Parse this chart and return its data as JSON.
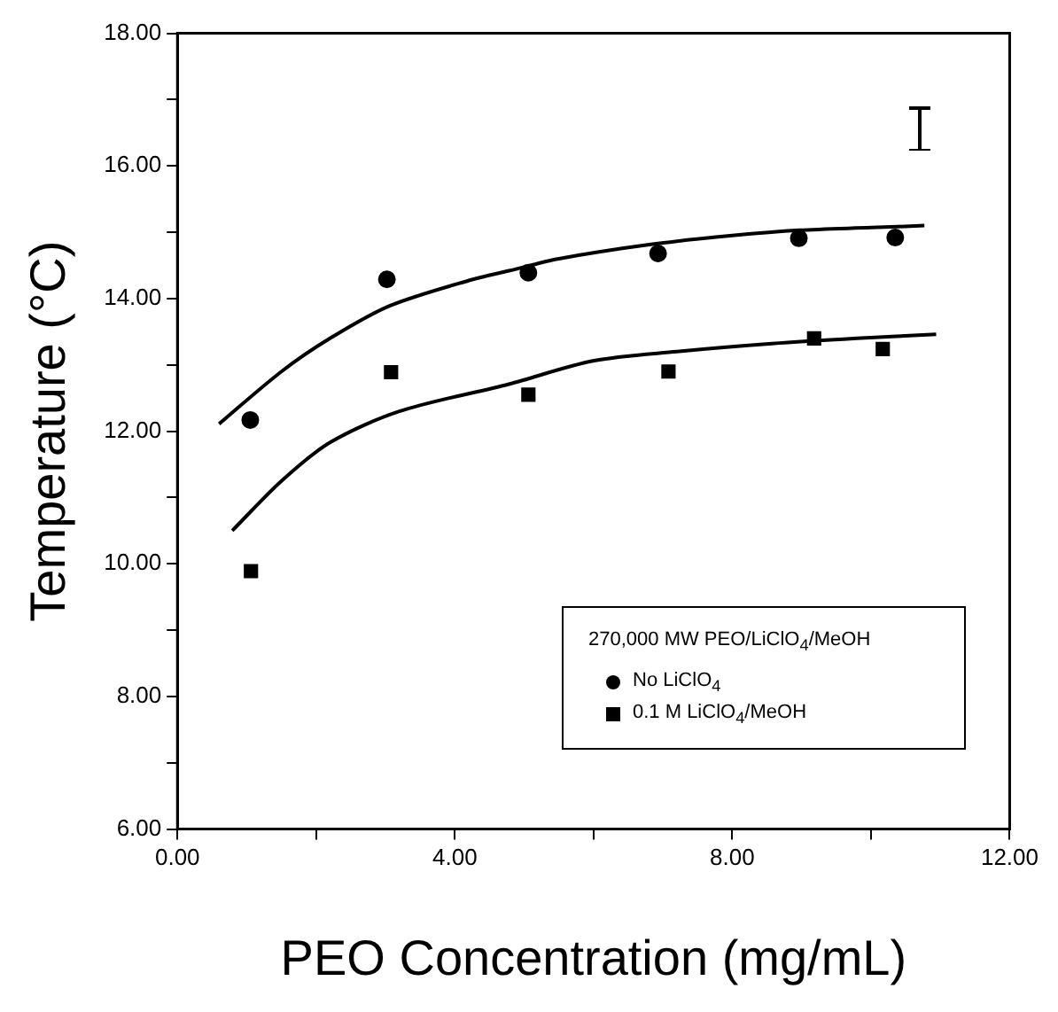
{
  "chart_data": {
    "type": "scatter",
    "xlabel": "PEO Concentration (mg/mL)",
    "ylabel": "Temperature (°C)",
    "legend_title": "270,000 MW PEO/LiClO$_{4}$/MeOH",
    "xlim": [
      0,
      12
    ],
    "xticks": [
      {
        "value": 0,
        "label": "0.00"
      },
      {
        "value": 2,
        "label": null
      },
      {
        "value": 4,
        "label": "4.00"
      },
      {
        "value": 6,
        "label": null
      },
      {
        "value": 8,
        "label": "8.00"
      },
      {
        "value": 10,
        "label": null
      },
      {
        "value": 12,
        "label": "12.00"
      }
    ],
    "ylim": [
      6,
      18
    ],
    "yticks": [
      {
        "value": 6,
        "label": "6.00"
      },
      {
        "value": 7,
        "label": null
      },
      {
        "value": 8,
        "label": "8.00"
      },
      {
        "value": 9,
        "label": null
      },
      {
        "value": 10,
        "label": "10.00"
      },
      {
        "value": 11,
        "label": null
      },
      {
        "value": 12,
        "label": "12.00"
      },
      {
        "value": 13,
        "label": null
      },
      {
        "value": 14,
        "label": "14.00"
      },
      {
        "value": 15,
        "label": null
      },
      {
        "value": 16,
        "label": "16.00"
      },
      {
        "value": 17,
        "label": null
      },
      {
        "value": 18,
        "label": "18.00"
      }
    ],
    "grid": false,
    "legend": "bottom right",
    "series": [
      {
        "name": "No LiClO$_{4}$",
        "type": "scatter",
        "marker": "circle",
        "color": "#000000",
        "x": [
          1.05,
          3.02,
          5.06,
          6.93,
          8.96,
          10.35
        ],
        "values": [
          12.17,
          14.29,
          14.39,
          14.68,
          14.91,
          14.92
        ]
      },
      {
        "name": "0.1 M LiClO$_{4}$/MeOH",
        "type": "scatter",
        "marker": "square",
        "color": "#000000",
        "x": [
          1.06,
          3.08,
          5.06,
          7.08,
          9.18,
          10.17
        ],
        "values": [
          9.89,
          12.89,
          12.55,
          12.9,
          13.4,
          13.24
        ]
      },
      {
        "type": "line",
        "marker": "none",
        "color": "#000000",
        "x": [
          0.6,
          1.5,
          2.2,
          3.06,
          4.26,
          4.78,
          5.5,
          6.85,
          8.0,
          8.96,
          10.0,
          10.77
        ],
        "values": [
          12.11,
          12.9,
          13.4,
          13.89,
          14.29,
          14.42,
          14.6,
          14.82,
          14.95,
          15.03,
          15.07,
          15.1
        ]
      },
      {
        "type": "line",
        "marker": "none",
        "color": "#000000",
        "x": [
          0.79,
          1.5,
          2.2,
          3.2,
          4.78,
          5.99,
          7.2,
          8.57,
          9.8,
          10.94
        ],
        "values": [
          10.5,
          11.25,
          11.83,
          12.3,
          12.71,
          13.06,
          13.2,
          13.32,
          13.4,
          13.46
        ]
      }
    ]
  }
}
